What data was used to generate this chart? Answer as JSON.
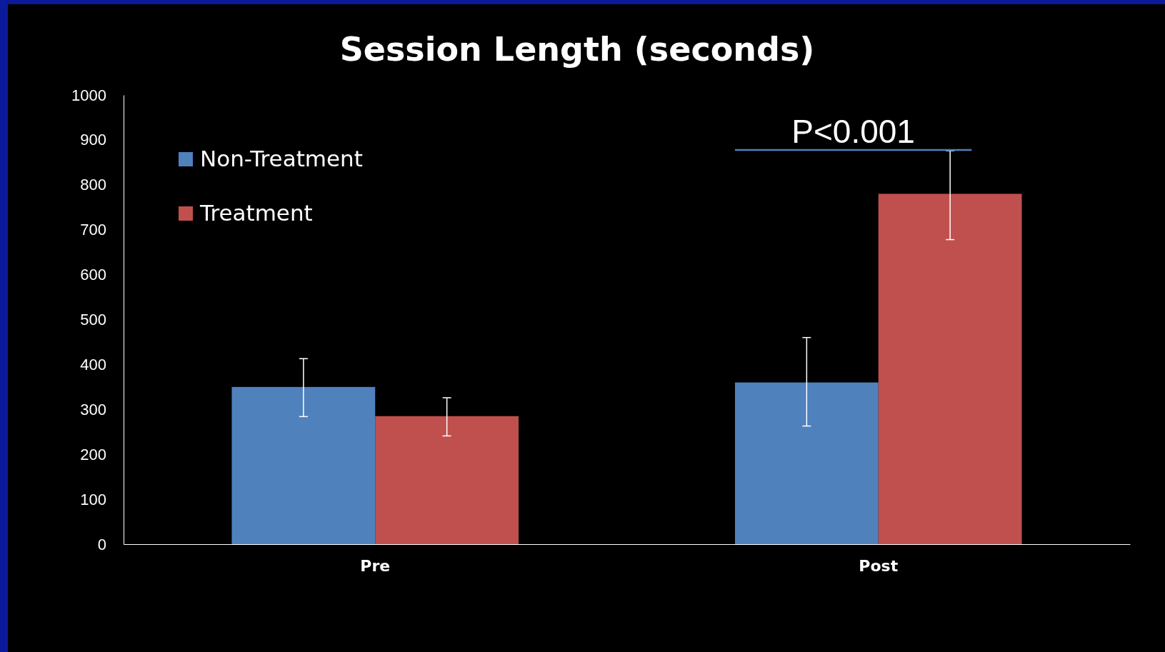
{
  "chart_data": {
    "type": "bar",
    "title": "Session Length (seconds)",
    "categories": [
      "Pre",
      "Post"
    ],
    "series": [
      {
        "name": "Non-Treatment",
        "color": "#4f81bd",
        "values": [
          350,
          360
        ],
        "errors": [
          [
            284,
            413
          ],
          [
            263,
            460
          ]
        ]
      },
      {
        "name": "Treatment",
        "color": "#c0504d",
        "values": [
          285,
          780
        ],
        "errors": [
          [
            241,
            326
          ],
          [
            678,
            876
          ]
        ]
      }
    ],
    "ylim": [
      0,
      1000
    ],
    "yticks": [
      0,
      100,
      200,
      300,
      400,
      500,
      600,
      700,
      800,
      900,
      1000
    ],
    "grid": false,
    "legend": "top left",
    "annotations": [
      "P<0.001"
    ]
  }
}
